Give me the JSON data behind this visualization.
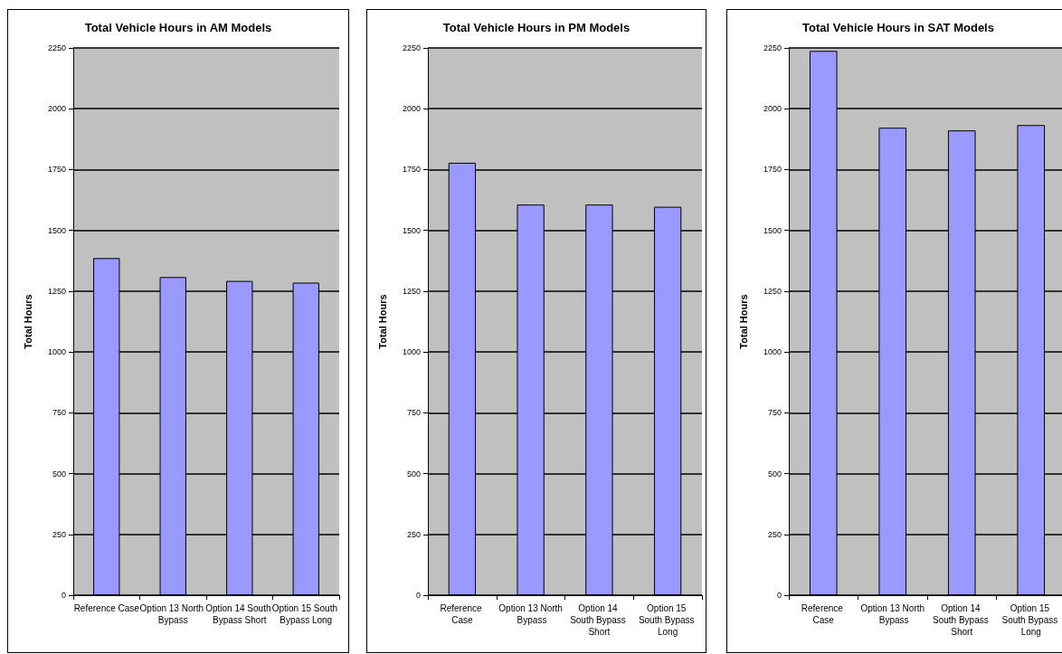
{
  "chart_data": [
    {
      "type": "bar",
      "title": "Total Vehicle Hours in AM Models",
      "ylabel": "Total Hours",
      "categories": [
        "Reference Case",
        "Option 13 North Bypass",
        "Option 14 South Bypass Short",
        "Option 15 South Bypass Long"
      ],
      "values": [
        1386,
        1308,
        1292,
        1285
      ],
      "color": "#9999ff",
      "ylim": [
        0,
        2250
      ],
      "yticks": [
        0,
        250,
        500,
        750,
        1000,
        1250,
        1500,
        1750,
        2000,
        2250
      ],
      "grid": "y"
    },
    {
      "type": "bar",
      "title": "Total Vehicle Hours in PM Models",
      "ylabel": "Total Hours",
      "categories": [
        "Reference Case",
        "Option 13 North Bypass",
        "Option 14 South Bypass Short",
        "Option 15 South Bypass Long"
      ],
      "values": [
        1778,
        1606,
        1606,
        1597
      ],
      "color": "#9999ff",
      "ylim": [
        0,
        2250
      ],
      "yticks": [
        0,
        250,
        500,
        750,
        1000,
        1250,
        1500,
        1750,
        2000,
        2250
      ],
      "grid": "y"
    },
    {
      "type": "bar",
      "title": "Total Vehicle Hours in SAT Models",
      "ylabel": "Total Hours",
      "categories": [
        "Reference Case",
        "Option 13 North Bypass",
        "Option 14 South Bypass Short",
        "Option 15 South Bypass Long"
      ],
      "values": [
        2238,
        1922,
        1911,
        1933
      ],
      "color": "#9999ff",
      "ylim": [
        0,
        2250
      ],
      "yticks": [
        0,
        250,
        500,
        750,
        1000,
        1250,
        1500,
        1750,
        2000,
        2250
      ],
      "grid": "y"
    }
  ]
}
